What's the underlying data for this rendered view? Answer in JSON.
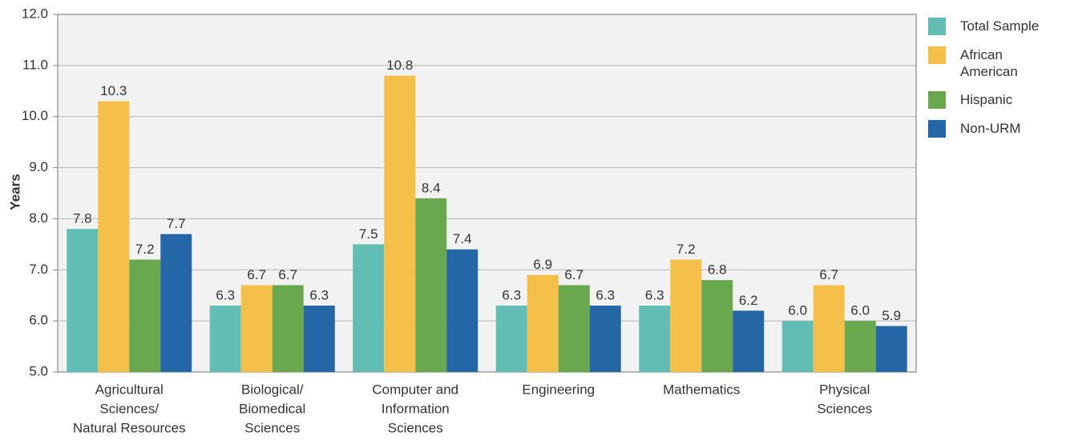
{
  "chart_data": {
    "type": "bar",
    "y_label": "Years",
    "categories": [
      [
        "Agricultural",
        "Sciences/",
        "Natural Resources"
      ],
      [
        "Biological/",
        "Biomedical",
        "Sciences"
      ],
      [
        "Computer and",
        "Information",
        "Sciences"
      ],
      [
        "Engineering"
      ],
      [
        "Mathematics"
      ],
      [
        "Physical",
        "Sciences"
      ]
    ],
    "series": [
      {
        "name": "Total Sample",
        "color": "#62bdb4",
        "values": [
          7.8,
          6.3,
          7.5,
          6.3,
          6.3,
          6.0
        ],
        "value_labels": [
          "7.8",
          "6.3",
          "7.5",
          "6.3",
          "6.3",
          "6.0"
        ]
      },
      {
        "name": "African American",
        "color": "#f5c04a",
        "values": [
          10.3,
          6.7,
          10.8,
          6.9,
          7.2,
          6.7
        ],
        "value_labels": [
          "10.3",
          "6.7",
          "10.8",
          "6.9",
          "7.2",
          "6.7"
        ]
      },
      {
        "name": "Hispanic",
        "color": "#6aa84f",
        "values": [
          7.2,
          6.7,
          8.4,
          6.7,
          6.8,
          6.0
        ],
        "value_labels": [
          "7.2",
          "6.7",
          "8.4",
          "6.7",
          "6.8",
          "6.0"
        ]
      },
      {
        "name": "Non-URM",
        "color": "#2566a6",
        "values": [
          7.7,
          6.3,
          7.4,
          6.3,
          6.2,
          5.9
        ],
        "value_labels": [
          "7.7",
          "6.3",
          "7.4",
          "6.3",
          "6.2",
          "5.9"
        ]
      }
    ],
    "ylim": [
      5,
      12
    ],
    "yticks": [
      {
        "value": 5,
        "label": "5.0"
      },
      {
        "value": 6,
        "label": "6.0"
      },
      {
        "value": 7,
        "label": "7.0"
      },
      {
        "value": 8,
        "label": "8.0"
      },
      {
        "value": 9,
        "label": "9.0"
      },
      {
        "value": 10,
        "label": "10.0"
      },
      {
        "value": 11,
        "label": "11.0"
      },
      {
        "value": 12,
        "label": "12.0"
      }
    ],
    "grid": true,
    "legend": "right"
  }
}
